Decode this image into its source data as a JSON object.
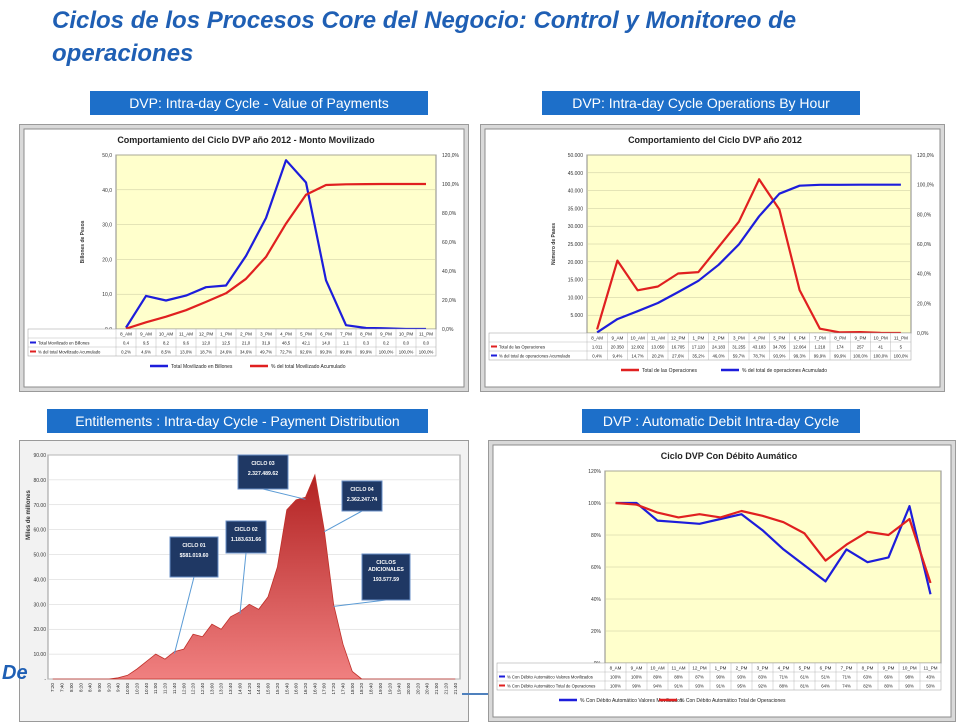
{
  "slide": {
    "title": "Ciclos de los Procesos Core del Negocio: Control y Monitoreo de operaciones",
    "footer_partial": "De",
    "colors": {
      "title": "#1f5fb4",
      "header_bar": "#1d6fc9",
      "plot_bg": "#ffffcc",
      "red": "#e02020",
      "blue": "#1d1ddb"
    }
  },
  "panels": [
    {
      "id": "p1",
      "header": "DVP:  Intra-day Cycle  - Value of Payments"
    },
    {
      "id": "p2",
      "header": "DVP:  Intra-day Cycle  Operations By Hour"
    },
    {
      "id": "p3",
      "header": "Entitlements :  Intra-day Cycle  - Payment Distribution"
    },
    {
      "id": "p4",
      "header": "DVP :  Automatic Debit Intra-day Cycle"
    }
  ],
  "chart_data": [
    {
      "type": "line",
      "title": "Comportamiento del Ciclo DVP año 2012  - Monto Movilizado",
      "ylabel": "Billones de Pesos",
      "ylim": [
        0,
        50
      ],
      "yticks": [
        "0,0",
        "10,0",
        "20,0",
        "30,0",
        "40,0",
        "50,0"
      ],
      "y2lim": [
        0,
        120
      ],
      "y2ticks": [
        "0,0%",
        "20,0%",
        "40,0%",
        "60,0%",
        "80,0%",
        "100,0%",
        "120,0%"
      ],
      "categories": [
        "8_AM",
        "9_AM",
        "10_AM",
        "11_AM",
        "12_PM",
        "1_PM",
        "2_PM",
        "3_PM",
        "4_PM",
        "5_PM",
        "6_PM",
        "7_PM",
        "8_PM",
        "9_PM",
        "10_PM",
        "11_PM"
      ],
      "series": [
        {
          "name": "Total Movilizado en Billones",
          "axis": "left",
          "color": "#1d1ddb",
          "label": "Total Movilizado en Billones",
          "values": [
            0.4,
            9.5,
            8.2,
            9.6,
            12.0,
            12.5,
            21.0,
            31.9,
            48.5,
            42.1,
            14.0,
            1.1,
            0.3,
            0.2,
            0.0,
            0.0
          ],
          "labels": [
            "0,4",
            "9,5",
            "8,2",
            "9,6",
            "12,0",
            "12,5",
            "21,0",
            "31,9",
            "48,5",
            "42,1",
            "14,0",
            "1,1",
            "0,3",
            "0,2",
            "0,0",
            "0,0"
          ]
        },
        {
          "name": "% del total Movilizado Acumulado",
          "axis": "right",
          "color": "#e02020",
          "label": "% del total Movilizado Acumulado",
          "values": [
            0.2,
            4.6,
            8.5,
            13.0,
            18.7,
            24.6,
            34.6,
            49.7,
            72.7,
            92.6,
            99.3,
            99.8,
            99.9,
            100.0,
            100.0,
            100.0
          ],
          "labels": [
            "0,2%",
            "4,6%",
            "8,5%",
            "13,0%",
            "18,7%",
            "24,6%",
            "34,6%",
            "49,7%",
            "72,7%",
            "92,6%",
            "99,3%",
            "99,8%",
            "99,9%",
            "100,0%",
            "100,0%",
            "100,0%"
          ]
        }
      ]
    },
    {
      "type": "line",
      "title": "Comportamiento del Ciclo DVP año 2012",
      "ylabel": "Número de Pases",
      "ylim": [
        0,
        50000
      ],
      "yticks": [
        "-",
        "5.000",
        "10.000",
        "15.000",
        "20.000",
        "25.000",
        "30.000",
        "35.000",
        "40.000",
        "45.000",
        "50.000"
      ],
      "y2lim": [
        0,
        120
      ],
      "y2ticks": [
        "0,0%",
        "20,0%",
        "40,0%",
        "60,0%",
        "80,0%",
        "100,0%",
        "120,0%"
      ],
      "categories": [
        "8_AM",
        "9_AM",
        "10_AM",
        "11_AM",
        "12_PM",
        "1_PM",
        "2_PM",
        "3_PM",
        "4_PM",
        "5_PM",
        "6_PM",
        "7_PM",
        "8_PM",
        "9_PM",
        "10_PM",
        "11_PM"
      ],
      "series": [
        {
          "name": "Total de las Operaciones",
          "axis": "left",
          "color": "#e02020",
          "label": "Total de las Operaciones",
          "values": [
            1011,
            20350,
            12002,
            13050,
            16705,
            17120,
            24183,
            31255,
            43183,
            34705,
            12064,
            1218,
            174,
            257,
            41,
            5
          ],
          "labels": [
            "1.011",
            "20.350",
            "12.002",
            "13.050",
            "16.705",
            "17.120",
            "24.183",
            "31.255",
            "43.183",
            "34.705",
            "12.064",
            "1.218",
            "174",
            "257",
            "41",
            "5"
          ]
        },
        {
          "name": "% del total de operaciones Acumulado",
          "axis": "right",
          "color": "#1d1ddb",
          "label": "% del total de operaciones Acumulado",
          "values": [
            0.4,
            9.4,
            14.7,
            20.2,
            27.6,
            35.2,
            46.0,
            59.7,
            78.7,
            93.9,
            99.3,
            99.9,
            99.9,
            100.0,
            100.0,
            100.0
          ],
          "labels": [
            "0,4%",
            "9,4%",
            "14,7%",
            "20,2%",
            "27,6%",
            "35,2%",
            "46,0%",
            "59,7%",
            "78,7%",
            "93,9%",
            "99,3%",
            "99,9%",
            "99,9%",
            "100,0%",
            "100,0%",
            "100,0%"
          ]
        }
      ]
    },
    {
      "type": "area",
      "title": "",
      "ylabel": "Miles de millones",
      "ylim": [
        0,
        90
      ],
      "yticks": [
        "-",
        "10.00",
        "20.00",
        "30.00",
        "40.00",
        "50.00",
        "60.00",
        "70.00",
        "80.00",
        "90.00"
      ],
      "categories": [
        "7:20",
        "7:40",
        "8:00",
        "8:20",
        "8:40",
        "9:00",
        "9:20",
        "9:40",
        "10:00",
        "10:20",
        "10:40",
        "11:00",
        "11:20",
        "11:40",
        "12:00",
        "12:20",
        "12:40",
        "13:00",
        "13:20",
        "13:40",
        "14:00",
        "14:20",
        "14:40",
        "15:00",
        "15:20",
        "15:40",
        "16:00",
        "16:20",
        "16:40",
        "17:00",
        "17:20",
        "17:40",
        "18:00",
        "18:20",
        "18:40",
        "19:00",
        "19:20",
        "19:40",
        "20:00",
        "20:20",
        "20:40",
        "21:00",
        "21:20",
        "21:40"
      ],
      "color": "#c0302a",
      "values": [
        0,
        0,
        0,
        0,
        0,
        0,
        0,
        0.5,
        1.5,
        4,
        7,
        10,
        8,
        11,
        12,
        18,
        17,
        22,
        20,
        25,
        27,
        30,
        28,
        33,
        45,
        68,
        72,
        73,
        82,
        60,
        30,
        14,
        3,
        0,
        0,
        0,
        0,
        0,
        0,
        0,
        0,
        0,
        0,
        0
      ],
      "annotations": [
        {
          "title": "CICLO 01",
          "value": "$581.019.60",
          "target": "11:40"
        },
        {
          "title": "CICLO 02",
          "value": "1.183.631.66",
          "target": "14:00"
        },
        {
          "title": "CICLO 03",
          "value": "2.327.489.62",
          "target": "16:20"
        },
        {
          "title": "CICLO 04",
          "value": "2.362.247.74",
          "target": "17:00"
        },
        {
          "title": "CICLOS ADICIONALES",
          "value": "193.577.59",
          "target": "17:20"
        }
      ]
    },
    {
      "type": "line",
      "title": "Ciclo DVP Con Débito Aumático",
      "ylim": [
        0,
        120
      ],
      "yticks": [
        "0%",
        "20%",
        "40%",
        "60%",
        "80%",
        "100%",
        "120%"
      ],
      "categories": [
        "8_AM",
        "9_AM",
        "10_AM",
        "11_AM",
        "12_PM",
        "1_PM",
        "2_PM",
        "3_PM",
        "4_PM",
        "5_PM",
        "6_PM",
        "7_PM",
        "8_PM",
        "9_PM",
        "10_PM",
        "11_PM"
      ],
      "series": [
        {
          "name": "% Con Débito Automático Valores Movilizados",
          "color": "#1d1ddb",
          "label": "% Con Débito Automático Valores Movilizados",
          "values": [
            100,
            100,
            89,
            88,
            87,
            90,
            93,
            83,
            71,
            61,
            51,
            71,
            63,
            66,
            98,
            43
          ],
          "labels": [
            "100%",
            "100%",
            "89%",
            "88%",
            "87%",
            "90%",
            "93%",
            "83%",
            "71%",
            "61%",
            "51%",
            "71%",
            "63%",
            "66%",
            "98%",
            "43%"
          ]
        },
        {
          "name": "% Con Débito Automático Total de Operaciones",
          "color": "#e02020",
          "label": "% Con Débito Automático Total de Operaciones",
          "values": [
            100,
            99,
            94,
            91,
            93,
            91,
            95,
            92,
            88,
            81,
            64,
            74,
            82,
            80,
            90,
            50
          ],
          "labels": [
            "100%",
            "99%",
            "94%",
            "91%",
            "93%",
            "91%",
            "95%",
            "92%",
            "88%",
            "81%",
            "64%",
            "74%",
            "82%",
            "80%",
            "90%",
            "50%"
          ]
        }
      ]
    }
  ]
}
